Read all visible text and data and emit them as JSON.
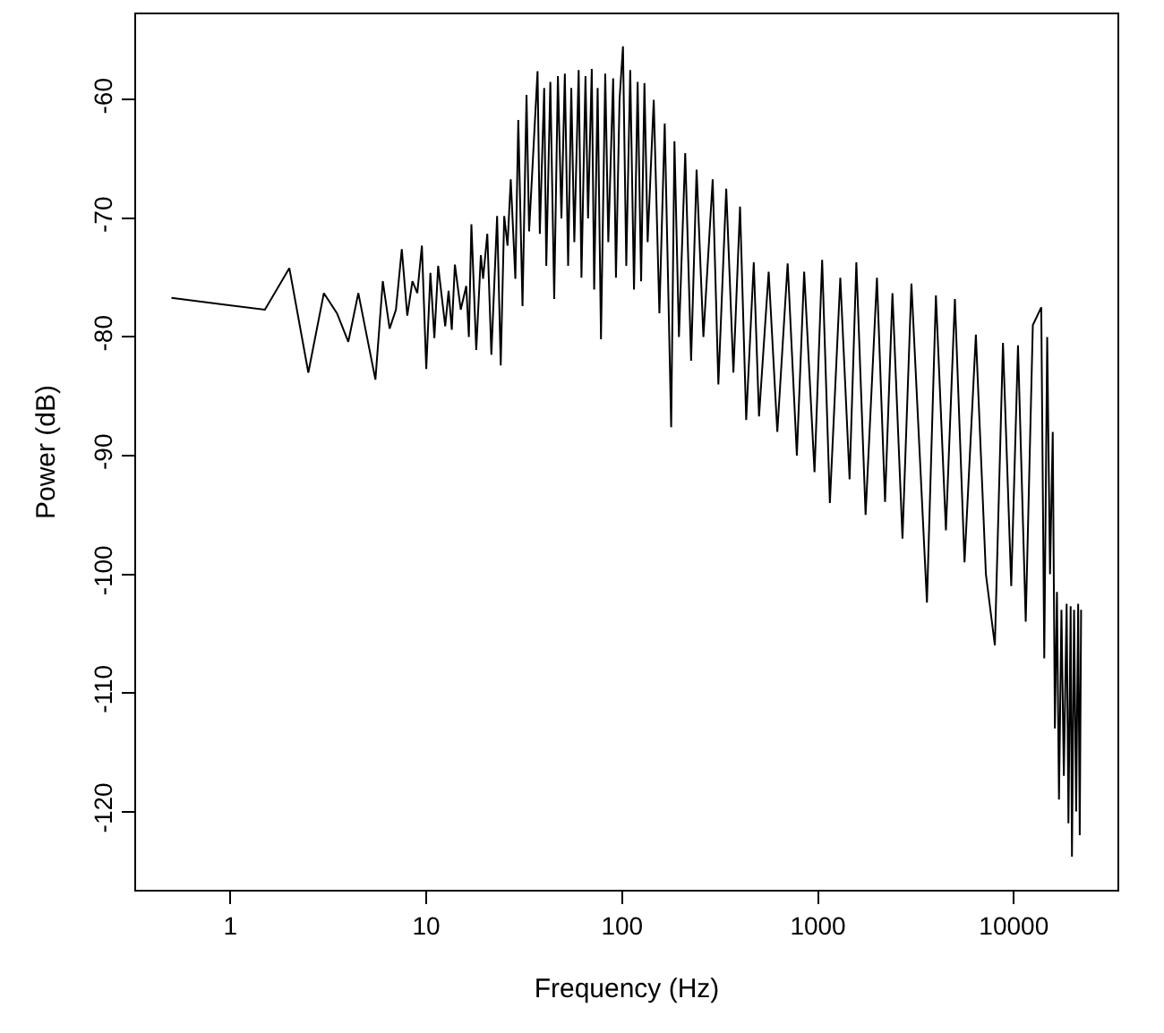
{
  "chart_data": {
    "type": "line",
    "xlabel": "Frequency (Hz)",
    "ylabel": "Power (dB)",
    "log": "x",
    "xlim": [
      0.33,
      33800
    ],
    "xticks": [
      1,
      10,
      100,
      1000,
      10000
    ],
    "ylim": [
      -126.6,
      -52.8
    ],
    "yticks": [
      -120,
      -110,
      -100,
      -90,
      -80,
      -70,
      -60
    ],
    "marker": "none",
    "line_style": "solid",
    "series": [
      {
        "color": "#000000",
        "x": [
          0.5,
          1.5,
          2,
          2.5,
          3,
          3.5,
          4,
          4.5,
          5.5,
          6,
          6.5,
          7,
          7.5,
          8,
          8.5,
          9,
          9.5,
          10,
          10.5,
          11,
          11.5,
          12.5,
          13,
          13.5,
          14,
          15,
          16,
          16.5,
          17,
          18,
          19,
          19.5,
          20.5,
          21.5,
          23,
          24,
          25,
          26,
          27,
          28.5,
          29.5,
          31,
          32.5,
          33.5,
          37,
          38,
          40,
          41,
          43,
          45,
          47,
          49,
          51,
          53,
          55,
          57,
          60,
          62,
          65,
          67,
          70,
          72,
          75,
          78,
          82,
          85,
          90,
          93,
          97,
          101,
          105,
          110,
          115,
          120,
          125,
          130,
          135,
          145,
          155,
          165,
          178,
          185,
          195,
          210,
          225,
          240,
          260,
          290,
          310,
          340,
          370,
          400,
          430,
          470,
          500,
          560,
          620,
          700,
          780,
          850,
          960,
          1050,
          1150,
          1300,
          1450,
          1570,
          1750,
          2000,
          2200,
          2400,
          2700,
          3000,
          3600,
          4000,
          4500,
          5000,
          5600,
          6400,
          7200,
          8000,
          8800,
          9700,
          10500,
          11500,
          12500,
          13800,
          14300,
          14800,
          15300,
          15800,
          16200,
          16600,
          17000,
          17500,
          18000,
          18600,
          19000,
          19500,
          19800,
          20300,
          20800,
          21300,
          21700,
          22050
        ],
        "values": [
          -76.7,
          -77.7,
          -74.2,
          -83.0,
          -76.3,
          -78.0,
          -80.4,
          -76.3,
          -83.6,
          -75.3,
          -79.3,
          -77.7,
          -72.6,
          -78.2,
          -75.3,
          -76.3,
          -72.3,
          -82.7,
          -74.6,
          -80.1,
          -74.0,
          -79.1,
          -76.1,
          -79.4,
          -73.9,
          -77.7,
          -75.7,
          -80.0,
          -70.5,
          -81.1,
          -73.1,
          -75.1,
          -71.3,
          -81.5,
          -69.8,
          -82.4,
          -69.8,
          -72.3,
          -66.7,
          -75.1,
          -61.7,
          -77.4,
          -59.6,
          -71.1,
          -57.6,
          -71.3,
          -59.0,
          -74,
          -58.5,
          -76.8,
          -58,
          -70,
          -57.8,
          -74,
          -59,
          -72,
          -57.5,
          -75,
          -58,
          -70,
          -57.4,
          -76,
          -59,
          -80.2,
          -57.8,
          -72,
          -58.2,
          -75,
          -60,
          -55.5,
          -74,
          -57.5,
          -76,
          -58.5,
          -75.3,
          -58.6,
          -72,
          -60,
          -78,
          -62,
          -87.6,
          -63.5,
          -80,
          -64.5,
          -82,
          -65.9,
          -80,
          -66.7,
          -84,
          -67.5,
          -83,
          -69,
          -87,
          -73.7,
          -86.7,
          -74.5,
          -88,
          -73.8,
          -90,
          -74.5,
          -91.4,
          -73.5,
          -94,
          -75,
          -92,
          -73.7,
          -95,
          -75,
          -93.9,
          -76.3,
          -97,
          -75.5,
          -102.4,
          -76.5,
          -96.3,
          -76.8,
          -99,
          -79.8,
          -100,
          -106,
          -80.5,
          -101,
          -80.7,
          -104,
          -79,
          -77.5,
          -107.1,
          -80,
          -100,
          -88,
          -113,
          -101.5,
          -119,
          -103,
          -117,
          -102.5,
          -121,
          -102.7,
          -123.8,
          -103,
          -120,
          -102.5,
          -122,
          -103
        ]
      }
    ]
  }
}
